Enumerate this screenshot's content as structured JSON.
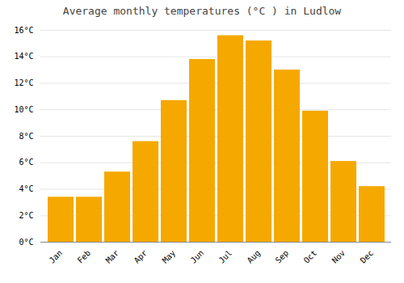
{
  "chart_data": {
    "type": "bar",
    "title": "Average monthly temperatures (°C ) in Ludlow",
    "categories": [
      "Jan",
      "Feb",
      "Mar",
      "Apr",
      "May",
      "Jun",
      "Jul",
      "Aug",
      "Sep",
      "Oct",
      "Nov",
      "Dec"
    ],
    "values": [
      3.4,
      3.4,
      5.3,
      7.6,
      10.7,
      13.8,
      15.6,
      15.2,
      13.0,
      9.9,
      6.1,
      4.2
    ],
    "color": "#F5A800",
    "ylim": [
      0,
      16
    ],
    "yticks": [
      {
        "value": 0,
        "label": "0°C"
      },
      {
        "value": 2,
        "label": "2°C"
      },
      {
        "value": 4,
        "label": "4°C"
      },
      {
        "value": 6,
        "label": "6°C"
      },
      {
        "value": 8,
        "label": "8°C"
      },
      {
        "value": 10,
        "label": "10°C"
      },
      {
        "value": 12,
        "label": "12°C"
      },
      {
        "value": 14,
        "label": "14°C"
      },
      {
        "value": 16,
        "label": "16°C"
      }
    ],
    "grid": true
  }
}
